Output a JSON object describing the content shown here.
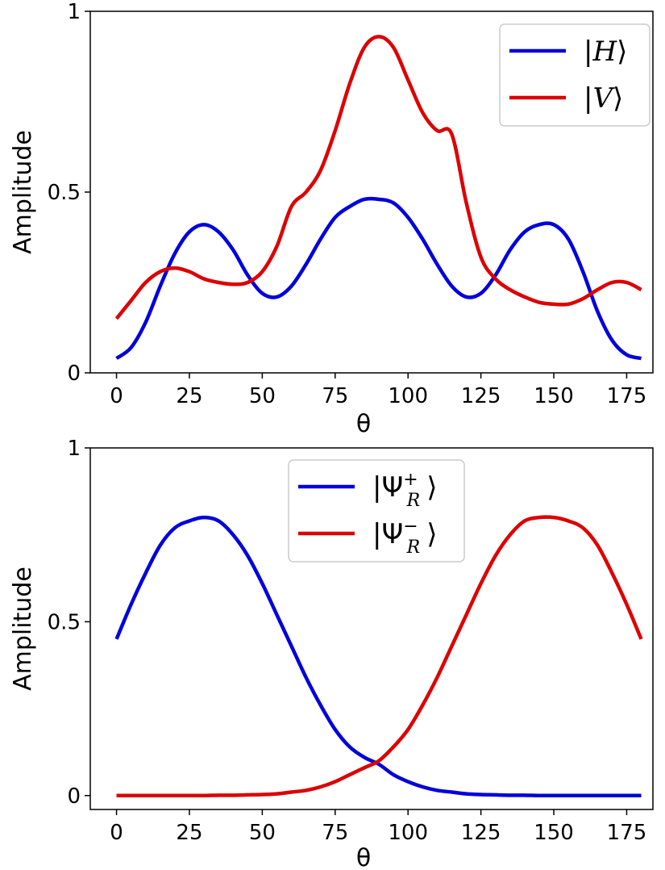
{
  "chart_data": [
    {
      "type": "line",
      "title": "",
      "xlabel": "θ",
      "ylabel": "Amplitude",
      "xlim": [
        -9,
        184
      ],
      "ylim": [
        0,
        1
      ],
      "xticks": [
        0,
        25,
        50,
        75,
        100,
        125,
        150,
        175
      ],
      "xtick_labels": [
        "0",
        "25",
        "50",
        "75",
        "100",
        "125",
        "150",
        "175"
      ],
      "yticks": [
        0,
        0.5,
        1
      ],
      "ytick_labels": [
        "0",
        "0.5",
        "1"
      ],
      "legend_position": "top-right",
      "series": [
        {
          "name": "|H⟩",
          "color": "#0000dd",
          "x": [
            0,
            5,
            10,
            15,
            20,
            25,
            30,
            35,
            40,
            45,
            50,
            55,
            60,
            65,
            70,
            75,
            80,
            85,
            90,
            95,
            100,
            105,
            110,
            115,
            120,
            125,
            130,
            135,
            140,
            145,
            150,
            155,
            160,
            165,
            170,
            175,
            180
          ],
          "y": [
            0.04,
            0.07,
            0.14,
            0.24,
            0.33,
            0.39,
            0.41,
            0.39,
            0.34,
            0.27,
            0.22,
            0.21,
            0.24,
            0.3,
            0.37,
            0.43,
            0.46,
            0.48,
            0.48,
            0.47,
            0.43,
            0.37,
            0.3,
            0.24,
            0.21,
            0.22,
            0.27,
            0.34,
            0.39,
            0.41,
            0.41,
            0.37,
            0.28,
            0.17,
            0.09,
            0.05,
            0.04
          ]
        },
        {
          "name": "|V⟩",
          "color": "#dd0000",
          "x": [
            0,
            5,
            10,
            15,
            20,
            25,
            30,
            35,
            40,
            45,
            50,
            55,
            60,
            65,
            70,
            75,
            80,
            85,
            90,
            95,
            100,
            105,
            110,
            115,
            120,
            125,
            130,
            135,
            140,
            145,
            150,
            155,
            160,
            165,
            170,
            175,
            180
          ],
          "y": [
            0.15,
            0.2,
            0.25,
            0.28,
            0.29,
            0.28,
            0.26,
            0.25,
            0.245,
            0.25,
            0.28,
            0.35,
            0.46,
            0.5,
            0.56,
            0.67,
            0.8,
            0.9,
            0.93,
            0.9,
            0.81,
            0.72,
            0.67,
            0.66,
            0.47,
            0.32,
            0.26,
            0.23,
            0.21,
            0.195,
            0.19,
            0.19,
            0.205,
            0.23,
            0.25,
            0.25,
            0.23
          ]
        }
      ]
    },
    {
      "type": "line",
      "title": "",
      "xlabel": "θ",
      "ylabel": "Amplitude",
      "xlim": [
        -9,
        184
      ],
      "ylim": [
        -0.04,
        1
      ],
      "xticks": [
        0,
        25,
        50,
        75,
        100,
        125,
        150,
        175
      ],
      "xtick_labels": [
        "0",
        "25",
        "50",
        "75",
        "100",
        "125",
        "150",
        "175"
      ],
      "yticks": [
        0,
        0.5,
        1
      ],
      "ytick_labels": [
        "0",
        "0.5",
        "1"
      ],
      "legend_position": "top-center",
      "series": [
        {
          "name": "|Ψ_R^+⟩",
          "color": "#0000dd",
          "x": [
            0,
            5,
            10,
            15,
            20,
            25,
            30,
            35,
            40,
            45,
            50,
            55,
            60,
            65,
            70,
            75,
            80,
            85,
            90,
            95,
            100,
            105,
            110,
            115,
            120,
            125,
            130,
            135,
            140,
            145,
            150,
            155,
            160,
            165,
            170,
            175,
            180
          ],
          "y": [
            0.45,
            0.55,
            0.64,
            0.72,
            0.77,
            0.79,
            0.8,
            0.79,
            0.75,
            0.69,
            0.61,
            0.52,
            0.43,
            0.34,
            0.26,
            0.19,
            0.14,
            0.11,
            0.09,
            0.06,
            0.04,
            0.025,
            0.015,
            0.01,
            0.005,
            0.003,
            0.002,
            0.001,
            0.001,
            0,
            0,
            0,
            0,
            0,
            0,
            0,
            0
          ]
        },
        {
          "name": "|Ψ_R^−⟩",
          "color": "#dd0000",
          "x": [
            0,
            5,
            10,
            15,
            20,
            25,
            30,
            35,
            40,
            45,
            50,
            55,
            60,
            65,
            70,
            75,
            80,
            85,
            90,
            95,
            100,
            105,
            110,
            115,
            120,
            125,
            130,
            135,
            140,
            145,
            150,
            155,
            160,
            165,
            170,
            175,
            180
          ],
          "y": [
            0,
            0,
            0,
            0,
            0,
            0,
            0,
            0.001,
            0.001,
            0.002,
            0.003,
            0.005,
            0.01,
            0.015,
            0.025,
            0.04,
            0.06,
            0.08,
            0.1,
            0.14,
            0.19,
            0.26,
            0.34,
            0.43,
            0.52,
            0.61,
            0.69,
            0.75,
            0.79,
            0.8,
            0.8,
            0.79,
            0.77,
            0.72,
            0.64,
            0.55,
            0.45
          ]
        }
      ]
    }
  ]
}
